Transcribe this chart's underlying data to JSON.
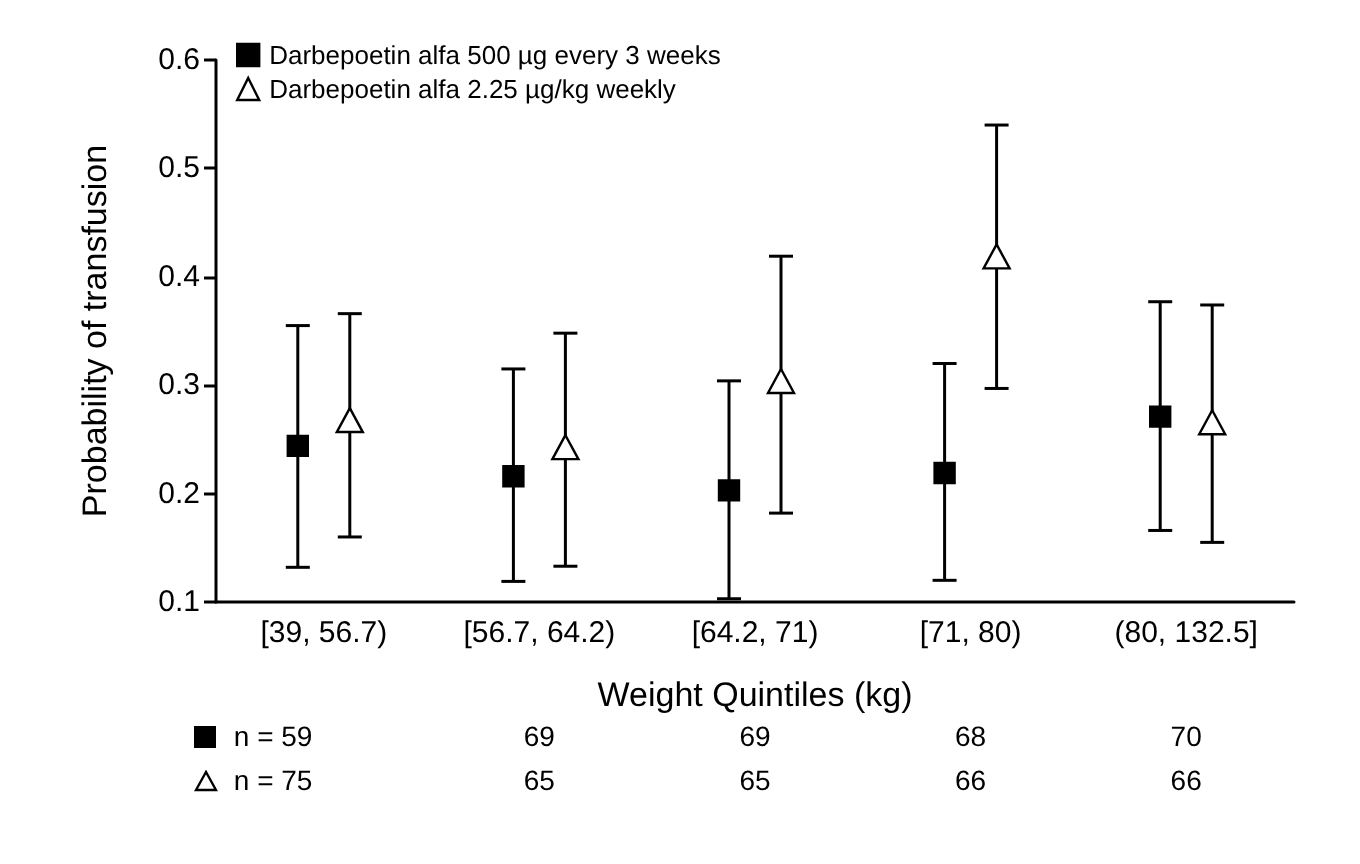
{
  "chart_data": {
    "type": "scatter",
    "xlabel": "Weight Quintiles (kg)",
    "ylabel": "Probability of transfusion",
    "categories": [
      "[39, 56.7)",
      "[56.7, 64.2)",
      "[64.2, 71)",
      "[71, 80)",
      "(80, 132.5]"
    ],
    "series": [
      {
        "name": "Darbepoetin alfa 500 µg every 3 weeks",
        "color": "#000000",
        "marker": "square",
        "values": [
          0.244,
          0.216,
          0.203,
          0.219,
          0.271
        ],
        "errors": [
          [
            0.132,
            0.355
          ],
          [
            0.119,
            0.315
          ],
          [
            0.103,
            0.304
          ],
          [
            0.12,
            0.32
          ],
          [
            0.166,
            0.377
          ]
        ]
      },
      {
        "name": "Darbepoetin alfa 2.25 µg/kg weekly",
        "color": "#ffffff",
        "marker": "triangle",
        "values": [
          0.266,
          0.241,
          0.302,
          0.417,
          0.264
        ],
        "errors": [
          [
            0.16,
            0.366
          ],
          [
            0.133,
            0.348
          ],
          [
            0.182,
            0.419
          ],
          [
            0.297,
            0.54
          ],
          [
            0.155,
            0.374
          ]
        ]
      }
    ],
    "ylim": [
      0.1,
      0.6
    ],
    "yticks": [
      0.1,
      0.2,
      0.3,
      0.4,
      0.5,
      0.6
    ],
    "grid": false,
    "legend": "top left",
    "annotations": [
      "n = 59",
      "69",
      "69",
      "68",
      "70",
      "n = 75",
      "65",
      "65",
      "66",
      "66"
    ]
  }
}
